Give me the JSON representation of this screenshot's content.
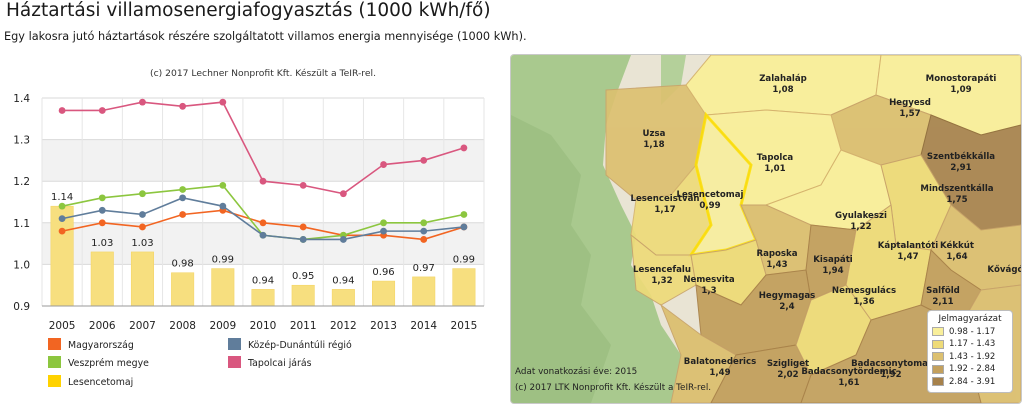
{
  "page": {
    "title": "Háztartási villamosenergiafogyasztás (1000 kWh/fő)",
    "subtitle": "Egy lakosra jutó háztartások részére szolgáltatott villamos energia mennyisége (1000 kWh)."
  },
  "chart_data": {
    "type": "line",
    "credit": "(c) 2017 Lechner Nonprofit Kft. Készült a TeIR-rel.",
    "categories": [
      "2005",
      "2006",
      "2007",
      "2008",
      "2009",
      "2010",
      "2011",
      "2012",
      "2013",
      "2014",
      "2015"
    ],
    "ylim": [
      0.9,
      1.4
    ],
    "yticks": [
      "0.9",
      "1.0",
      "1.1",
      "1.2",
      "1.3",
      "1.4"
    ],
    "grid": true,
    "legend_position": "bottom",
    "bar_series": {
      "name": "Lesencetomaj",
      "color": "#f7df7f",
      "values": [
        1.14,
        1.03,
        1.03,
        0.98,
        0.99,
        0.94,
        0.95,
        0.94,
        0.96,
        0.97,
        0.99
      ],
      "labels": [
        "1.14",
        "1.03",
        "1.03",
        "0.98",
        "0.99",
        "0.94",
        "0.95",
        "0.94",
        "0.96",
        "0.97",
        "0.99"
      ]
    },
    "series": [
      {
        "name": "Magyarország",
        "color": "#f26522",
        "values": [
          1.08,
          1.1,
          1.09,
          1.12,
          1.13,
          1.1,
          1.09,
          1.07,
          1.07,
          1.06,
          1.09
        ]
      },
      {
        "name": "Veszprém megye",
        "color": "#8cc63f",
        "values": [
          1.14,
          1.16,
          1.17,
          1.18,
          1.19,
          1.07,
          1.06,
          1.07,
          1.1,
          1.1,
          1.12
        ]
      },
      {
        "name": "Közép-Dunántúli régió",
        "color": "#607d9b",
        "values": [
          1.11,
          1.13,
          1.12,
          1.16,
          1.14,
          1.07,
          1.06,
          1.06,
          1.08,
          1.08,
          1.09
        ]
      },
      {
        "name": "Tapolcai járás",
        "color": "#d9577f",
        "values": [
          1.37,
          1.37,
          1.39,
          1.38,
          1.39,
          1.2,
          1.19,
          1.17,
          1.24,
          1.25,
          1.28
        ]
      }
    ],
    "legend": [
      {
        "name": "Magyarország",
        "color": "#f26522"
      },
      {
        "name": "Közép-Dunántúli régió",
        "color": "#607d9b"
      },
      {
        "name": "Veszprém megye",
        "color": "#8cc63f"
      },
      {
        "name": "Tapolcai járás",
        "color": "#d9577f"
      },
      {
        "name": "Lesencetomaj",
        "color": "#ffd200"
      }
    ]
  },
  "map": {
    "legend_title": "Jelmagyarázat",
    "legend": [
      {
        "range": "0.98 - 1.17",
        "color": "#f9ef9a"
      },
      {
        "range": "1.17 - 1.43",
        "color": "#eedb78"
      },
      {
        "range": "1.43 - 1.92",
        "color": "#dcc070"
      },
      {
        "range": "1.92 - 2.84",
        "color": "#c3a05d"
      },
      {
        "range": "2.84 - 3.91",
        "color": "#a6814a"
      }
    ],
    "footnote_year": "Adat vonatkozási éve: 2015",
    "footnote_credit": "(c) 2017 LTK Nonprofit Kft. Készült a TeIR-rel.",
    "settlements": [
      {
        "name": "Zalahaláp",
        "value": "1,08"
      },
      {
        "name": "Monostorapáti",
        "value": "1,09"
      },
      {
        "name": "Hegyesd",
        "value": "1,57"
      },
      {
        "name": "Uzsa",
        "value": "1,18"
      },
      {
        "name": "Tapolca",
        "value": "1,01"
      },
      {
        "name": "Szentbékkálla",
        "value": "2,91"
      },
      {
        "name": "Mindszentkálla",
        "value": "1,75"
      },
      {
        "name": "Lesenceistván",
        "value": "1,17"
      },
      {
        "name": "Lesencetomaj",
        "value": "0,99"
      },
      {
        "name": "Gyulakeszi",
        "value": "1,22"
      },
      {
        "name": "Káptalantóti",
        "value": "1,47"
      },
      {
        "name": "Kékkút",
        "value": "1,64"
      },
      {
        "name": "Raposka",
        "value": "1,43"
      },
      {
        "name": "Kisapáti",
        "value": "1,94"
      },
      {
        "name": "Lesencefalu",
        "value": "1,32"
      },
      {
        "name": "Nemesvita",
        "value": "1,3"
      },
      {
        "name": "Hegymagas",
        "value": "2,4"
      },
      {
        "name": "Nemesgulács",
        "value": "1,36"
      },
      {
        "name": "Salföld",
        "value": "2,11"
      },
      {
        "name": "Balatonederics",
        "value": "1,49"
      },
      {
        "name": "Szigliget",
        "value": "2,02"
      },
      {
        "name": "Badacsonytomaj",
        "value": "1,92"
      },
      {
        "name": "Badacsonytördemic",
        "value": "1,61"
      },
      {
        "name": "Kővágóörs",
        "value": ""
      }
    ]
  }
}
